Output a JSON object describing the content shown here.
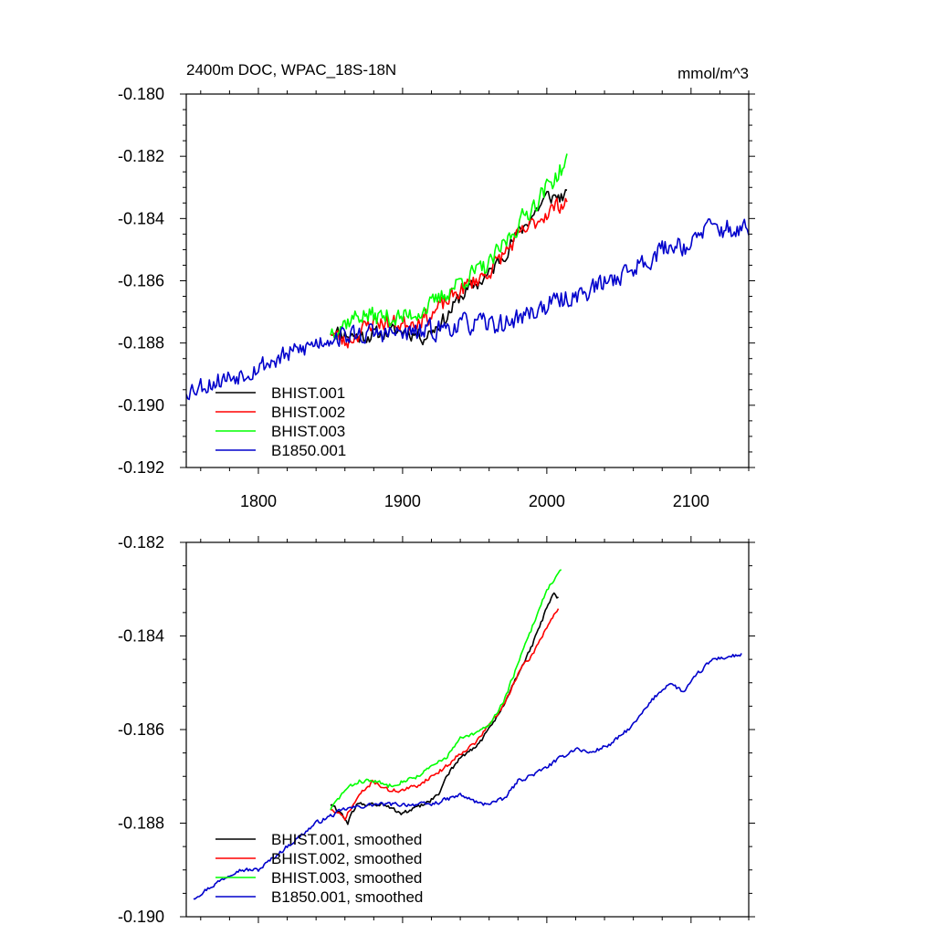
{
  "chart_data": [
    {
      "type": "line",
      "title": "2400m DOC, WPAC_18S-18N",
      "units": "mmol/m^3",
      "xlabel": "",
      "ylabel": "",
      "xlim": [
        1750,
        2140
      ],
      "ylim": [
        -0.192,
        -0.18
      ],
      "xticks": [
        1800,
        1900,
        2000,
        2100
      ],
      "yticks": [
        -0.192,
        -0.19,
        -0.188,
        -0.186,
        -0.184,
        -0.182,
        -0.18
      ],
      "xtick_labels": [
        "1800",
        "1900",
        "2000",
        "2100"
      ],
      "ytick_labels": [
        "-0.192",
        "-0.190",
        "-0.188",
        "-0.186",
        "-0.184",
        "-0.182",
        "-0.180"
      ],
      "legend": "bottom-left",
      "grid": false,
      "series": [
        {
          "name": "BHIST.001",
          "color": "#000000",
          "noise": 0.00022,
          "seed": 11,
          "keyframes": [
            [
              1850,
              -0.1876
            ],
            [
              1870,
              -0.1878
            ],
            [
              1900,
              -0.1876
            ],
            [
              1915,
              -0.1878
            ],
            [
              1930,
              -0.1872
            ],
            [
              1940,
              -0.1865
            ],
            [
              1960,
              -0.1858
            ],
            [
              1980,
              -0.1845
            ],
            [
              2000,
              -0.1833
            ],
            [
              2014,
              -0.1833
            ]
          ]
        },
        {
          "name": "BHIST.002",
          "color": "#ff0000",
          "noise": 0.00025,
          "seed": 23,
          "keyframes": [
            [
              1850,
              -0.1876
            ],
            [
              1860,
              -0.188
            ],
            [
              1880,
              -0.1873
            ],
            [
              1900,
              -0.1874
            ],
            [
              1920,
              -0.1871
            ],
            [
              1940,
              -0.1863
            ],
            [
              1960,
              -0.1857
            ],
            [
              1980,
              -0.1846
            ],
            [
              2000,
              -0.1838
            ],
            [
              2014,
              -0.1834
            ]
          ]
        },
        {
          "name": "BHIST.003",
          "color": "#00ff00",
          "noise": 0.00028,
          "seed": 37,
          "keyframes": [
            [
              1850,
              -0.1876
            ],
            [
              1870,
              -0.1871
            ],
            [
              1900,
              -0.1872
            ],
            [
              1920,
              -0.1868
            ],
            [
              1940,
              -0.186
            ],
            [
              1960,
              -0.1855
            ],
            [
              1980,
              -0.1842
            ],
            [
              2000,
              -0.183
            ],
            [
              2014,
              -0.1822
            ]
          ]
        },
        {
          "name": "B1850.001",
          "color": "#0000cc",
          "noise": 0.0003,
          "seed": 53,
          "keyframes": [
            [
              1750,
              -0.1895
            ],
            [
              1780,
              -0.1891
            ],
            [
              1820,
              -0.1884
            ],
            [
              1850,
              -0.1878
            ],
            [
              1880,
              -0.1877
            ],
            [
              1910,
              -0.1877
            ],
            [
              1940,
              -0.1874
            ],
            [
              1970,
              -0.1874
            ],
            [
              2000,
              -0.1868
            ],
            [
              2030,
              -0.1863
            ],
            [
              2060,
              -0.1856
            ],
            [
              2080,
              -0.185
            ],
            [
              2090,
              -0.1848
            ],
            [
              2100,
              -0.1849
            ],
            [
              2110,
              -0.1843
            ],
            [
              2140,
              -0.1844
            ]
          ]
        }
      ]
    },
    {
      "type": "line",
      "title": "",
      "xlabel": "",
      "ylabel": "",
      "xlim": [
        1750,
        2140
      ],
      "ylim": [
        -0.19,
        -0.182
      ],
      "xticks": [
        1800,
        1900,
        2000,
        2100
      ],
      "yticks": [
        -0.19,
        -0.188,
        -0.186,
        -0.184,
        -0.182
      ],
      "ytick_labels": [
        "-0.190",
        "-0.188",
        "-0.186",
        "-0.184",
        "-0.182"
      ],
      "legend": "bottom-left",
      "grid": false,
      "series": [
        {
          "name": "BHIST.001, smoothed",
          "color": "#000000",
          "noise": 4e-05,
          "seed": 61,
          "keyframes": [
            [
              1850,
              -0.1876
            ],
            [
              1858,
              -0.1878
            ],
            [
              1862,
              -0.188
            ],
            [
              1868,
              -0.1876
            ],
            [
              1885,
              -0.1876
            ],
            [
              1900,
              -0.1878
            ],
            [
              1915,
              -0.1876
            ],
            [
              1925,
              -0.1874
            ],
            [
              1930,
              -0.187
            ],
            [
              1940,
              -0.1866
            ],
            [
              1950,
              -0.1864
            ],
            [
              1960,
              -0.186
            ],
            [
              1970,
              -0.1855
            ],
            [
              1980,
              -0.1848
            ],
            [
              1990,
              -0.1842
            ],
            [
              2000,
              -0.1834
            ],
            [
              2005,
              -0.1831
            ],
            [
              2008,
              -0.1832
            ]
          ]
        },
        {
          "name": "BHIST.002, smoothed",
          "color": "#ff0000",
          "noise": 4e-05,
          "seed": 71,
          "keyframes": [
            [
              1850,
              -0.1877
            ],
            [
              1860,
              -0.1879
            ],
            [
              1870,
              -0.1874
            ],
            [
              1880,
              -0.1871
            ],
            [
              1890,
              -0.1873
            ],
            [
              1900,
              -0.1873
            ],
            [
              1910,
              -0.1872
            ],
            [
              1920,
              -0.187
            ],
            [
              1930,
              -0.1868
            ],
            [
              1940,
              -0.1865
            ],
            [
              1950,
              -0.1863
            ],
            [
              1960,
              -0.1859
            ],
            [
              1970,
              -0.1855
            ],
            [
              1980,
              -0.1848
            ],
            [
              1990,
              -0.1844
            ],
            [
              2000,
              -0.1838
            ],
            [
              2008,
              -0.1834
            ]
          ]
        },
        {
          "name": "BHIST.003, smoothed",
          "color": "#00ff00",
          "noise": 4e-05,
          "seed": 83,
          "keyframes": [
            [
              1850,
              -0.1877
            ],
            [
              1860,
              -0.1873
            ],
            [
              1870,
              -0.1871
            ],
            [
              1880,
              -0.1871
            ],
            [
              1890,
              -0.1872
            ],
            [
              1900,
              -0.1871
            ],
            [
              1910,
              -0.187
            ],
            [
              1920,
              -0.1868
            ],
            [
              1930,
              -0.1866
            ],
            [
              1940,
              -0.1862
            ],
            [
              1950,
              -0.1861
            ],
            [
              1960,
              -0.1859
            ],
            [
              1970,
              -0.1854
            ],
            [
              1980,
              -0.1846
            ],
            [
              1990,
              -0.1838
            ],
            [
              2000,
              -0.183
            ],
            [
              2010,
              -0.1826
            ]
          ]
        },
        {
          "name": "B1850.001, smoothed",
          "color": "#0000cc",
          "noise": 4e-05,
          "seed": 97,
          "keyframes": [
            [
              1755,
              -0.1896
            ],
            [
              1770,
              -0.1893
            ],
            [
              1785,
              -0.189
            ],
            [
              1800,
              -0.189
            ],
            [
              1820,
              -0.1885
            ],
            [
              1840,
              -0.188
            ],
            [
              1860,
              -0.1877
            ],
            [
              1880,
              -0.1876
            ],
            [
              1900,
              -0.1876
            ],
            [
              1920,
              -0.1876
            ],
            [
              1940,
              -0.1874
            ],
            [
              1955,
              -0.1876
            ],
            [
              1970,
              -0.1875
            ],
            [
              1980,
              -0.1871
            ],
            [
              1995,
              -0.1869
            ],
            [
              2010,
              -0.1866
            ],
            [
              2020,
              -0.1864
            ],
            [
              2030,
              -0.1865
            ],
            [
              2045,
              -0.1863
            ],
            [
              2060,
              -0.1859
            ],
            [
              2075,
              -0.1853
            ],
            [
              2085,
              -0.185
            ],
            [
              2095,
              -0.1852
            ],
            [
              2105,
              -0.1848
            ],
            [
              2115,
              -0.1845
            ],
            [
              2135,
              -0.1844
            ]
          ]
        }
      ]
    }
  ]
}
